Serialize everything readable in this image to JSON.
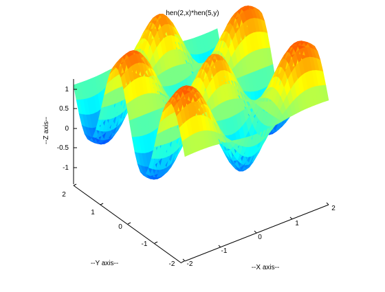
{
  "chart_data": {
    "type": "surface",
    "title": "hen(2,x)*hen(5,y)",
    "xlabel": "--X axis--",
    "ylabel": "--Y axis--",
    "zlabel": "--Z axis--",
    "xlim": [
      -2,
      2
    ],
    "ylim": [
      -2,
      2
    ],
    "zlim": [
      -1.3,
      1.3
    ],
    "x_ticks": [
      "-2",
      "-1",
      "0",
      "1",
      "2"
    ],
    "y_ticks": [
      "-2",
      "-1",
      "0",
      "1",
      "2"
    ],
    "z_ticks": [
      "1",
      "0.5",
      "0",
      "-0.5",
      "-1"
    ],
    "colormap": "jet",
    "grid": false,
    "surface": {
      "x_range": [
        -2,
        2
      ],
      "y_range": [
        -2,
        2
      ],
      "z_range": [
        -1.22,
        1.22
      ],
      "note_shape": "Hermite-like oscillating surface: two peaks along x edges, multiple ripples along y"
    }
  }
}
